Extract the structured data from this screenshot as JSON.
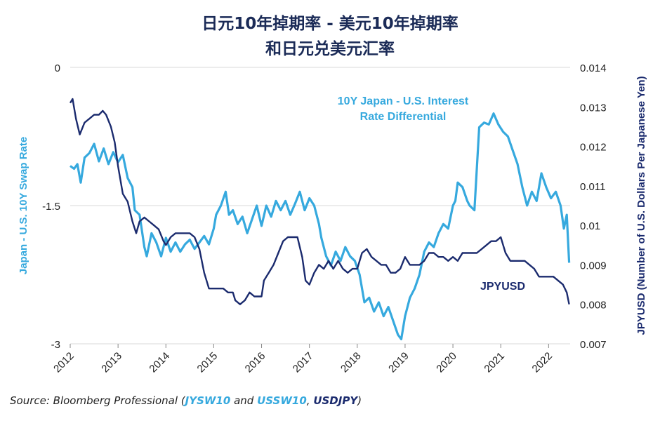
{
  "title_line1": "日元10年掉期率 - 美元10年掉期率",
  "title_line2": "和日元兑美元汇率",
  "source": {
    "prefix": "Source: Bloomberg Professional (",
    "jp_code": "JYSW10",
    "and": " and ",
    "us_code": "USSW10",
    "comma": ", ",
    "fx_code": "USDJPY",
    "suffix": ")"
  },
  "colors": {
    "differential": "#36a9de",
    "jpyusd": "#1b2b6e",
    "grid": "#d9d9d9",
    "axis_text": "#222222"
  },
  "chart_data": {
    "type": "line",
    "x_tick_labels": [
      "2012",
      "2013",
      "2014",
      "2015",
      "2016",
      "2017",
      "2018",
      "2019",
      "2020",
      "2021",
      "2022"
    ],
    "x_range": [
      2012.0,
      2022.45
    ],
    "y_left": {
      "label": "Japan - U.S. 10Y Swap Rate",
      "ticks": [
        "0",
        "-1.5",
        "-3"
      ],
      "tick_values": [
        0,
        -1.5,
        -3
      ],
      "range": [
        -3,
        0
      ]
    },
    "y_right": {
      "label": "JPYUSD (Number of U.S. Dollars Per Japanese Yen)",
      "ticks": [
        "0.014",
        "0.013",
        "0.012",
        "0.011",
        "0.01",
        "0.009",
        "0.008",
        "0.007"
      ],
      "tick_values": [
        0.014,
        0.013,
        0.012,
        0.011,
        0.01,
        0.009,
        0.008,
        0.007
      ],
      "range": [
        0.007,
        0.014
      ]
    },
    "grid": true,
    "series": [
      {
        "name": "10Y Japan - U.S. Interest Rate Differential",
        "label_lines": [
          "10Y Japan - U.S. Interest",
          "Rate Differential"
        ],
        "axis": "left",
        "points": [
          [
            2012.0,
            -1.07
          ],
          [
            2012.08,
            -1.1
          ],
          [
            2012.15,
            -1.05
          ],
          [
            2012.22,
            -1.25
          ],
          [
            2012.3,
            -0.98
          ],
          [
            2012.4,
            -0.93
          ],
          [
            2012.5,
            -0.83
          ],
          [
            2012.6,
            -1.02
          ],
          [
            2012.7,
            -0.88
          ],
          [
            2012.8,
            -1.05
          ],
          [
            2012.9,
            -0.92
          ],
          [
            2013.0,
            -1.03
          ],
          [
            2013.1,
            -0.95
          ],
          [
            2013.2,
            -1.2
          ],
          [
            2013.3,
            -1.3
          ],
          [
            2013.35,
            -1.55
          ],
          [
            2013.45,
            -1.6
          ],
          [
            2013.55,
            -1.95
          ],
          [
            2013.6,
            -2.05
          ],
          [
            2013.7,
            -1.8
          ],
          [
            2013.8,
            -1.9
          ],
          [
            2013.9,
            -2.05
          ],
          [
            2014.0,
            -1.85
          ],
          [
            2014.1,
            -2.0
          ],
          [
            2014.2,
            -1.9
          ],
          [
            2014.3,
            -2.0
          ],
          [
            2014.4,
            -1.92
          ],
          [
            2014.5,
            -1.87
          ],
          [
            2014.6,
            -1.97
          ],
          [
            2014.7,
            -1.9
          ],
          [
            2014.8,
            -1.83
          ],
          [
            2014.9,
            -1.92
          ],
          [
            2015.0,
            -1.75
          ],
          [
            2015.05,
            -1.6
          ],
          [
            2015.15,
            -1.5
          ],
          [
            2015.25,
            -1.35
          ],
          [
            2015.32,
            -1.6
          ],
          [
            2015.4,
            -1.55
          ],
          [
            2015.5,
            -1.7
          ],
          [
            2015.6,
            -1.62
          ],
          [
            2015.7,
            -1.8
          ],
          [
            2015.8,
            -1.65
          ],
          [
            2015.9,
            -1.5
          ],
          [
            2016.0,
            -1.72
          ],
          [
            2016.1,
            -1.5
          ],
          [
            2016.2,
            -1.62
          ],
          [
            2016.3,
            -1.45
          ],
          [
            2016.4,
            -1.55
          ],
          [
            2016.5,
            -1.45
          ],
          [
            2016.6,
            -1.6
          ],
          [
            2016.7,
            -1.48
          ],
          [
            2016.8,
            -1.35
          ],
          [
            2016.9,
            -1.55
          ],
          [
            2017.0,
            -1.42
          ],
          [
            2017.1,
            -1.5
          ],
          [
            2017.2,
            -1.7
          ],
          [
            2017.25,
            -1.85
          ],
          [
            2017.35,
            -2.05
          ],
          [
            2017.45,
            -2.15
          ],
          [
            2017.55,
            -2.0
          ],
          [
            2017.65,
            -2.1
          ],
          [
            2017.75,
            -1.95
          ],
          [
            2017.85,
            -2.05
          ],
          [
            2017.95,
            -2.1
          ],
          [
            2018.05,
            -2.25
          ],
          [
            2018.15,
            -2.55
          ],
          [
            2018.25,
            -2.5
          ],
          [
            2018.35,
            -2.65
          ],
          [
            2018.45,
            -2.55
          ],
          [
            2018.55,
            -2.7
          ],
          [
            2018.65,
            -2.6
          ],
          [
            2018.75,
            -2.75
          ],
          [
            2018.85,
            -2.9
          ],
          [
            2018.92,
            -2.95
          ],
          [
            2019.0,
            -2.7
          ],
          [
            2019.1,
            -2.5
          ],
          [
            2019.2,
            -2.4
          ],
          [
            2019.3,
            -2.25
          ],
          [
            2019.4,
            -2.0
          ],
          [
            2019.5,
            -1.9
          ],
          [
            2019.6,
            -1.95
          ],
          [
            2019.7,
            -1.8
          ],
          [
            2019.8,
            -1.7
          ],
          [
            2019.9,
            -1.75
          ],
          [
            2020.0,
            -1.5
          ],
          [
            2020.05,
            -1.45
          ],
          [
            2020.1,
            -1.25
          ],
          [
            2020.2,
            -1.3
          ],
          [
            2020.3,
            -1.45
          ],
          [
            2020.35,
            -1.5
          ],
          [
            2020.45,
            -1.55
          ],
          [
            2020.5,
            -1.1
          ],
          [
            2020.55,
            -0.65
          ],
          [
            2020.65,
            -0.6
          ],
          [
            2020.75,
            -0.62
          ],
          [
            2020.85,
            -0.5
          ],
          [
            2020.95,
            -0.62
          ],
          [
            2021.05,
            -0.7
          ],
          [
            2021.15,
            -0.75
          ],
          [
            2021.25,
            -0.9
          ],
          [
            2021.35,
            -1.05
          ],
          [
            2021.45,
            -1.3
          ],
          [
            2021.55,
            -1.5
          ],
          [
            2021.65,
            -1.35
          ],
          [
            2021.75,
            -1.45
          ],
          [
            2021.85,
            -1.15
          ],
          [
            2021.95,
            -1.3
          ],
          [
            2022.05,
            -1.42
          ],
          [
            2022.15,
            -1.35
          ],
          [
            2022.25,
            -1.5
          ],
          [
            2022.32,
            -1.75
          ],
          [
            2022.38,
            -1.6
          ],
          [
            2022.43,
            -2.12
          ]
        ]
      },
      {
        "name": "JPYUSD",
        "label_lines": [
          "JPYUSD"
        ],
        "axis": "right",
        "points": [
          [
            2012.0,
            0.0131
          ],
          [
            2012.05,
            0.0132
          ],
          [
            2012.12,
            0.0127
          ],
          [
            2012.2,
            0.0123
          ],
          [
            2012.3,
            0.0126
          ],
          [
            2012.4,
            0.0127
          ],
          [
            2012.5,
            0.0128
          ],
          [
            2012.6,
            0.0128
          ],
          [
            2012.68,
            0.0129
          ],
          [
            2012.75,
            0.0128
          ],
          [
            2012.85,
            0.0125
          ],
          [
            2012.93,
            0.0121
          ],
          [
            2013.0,
            0.0115
          ],
          [
            2013.1,
            0.0108
          ],
          [
            2013.2,
            0.0106
          ],
          [
            2013.3,
            0.0101
          ],
          [
            2013.38,
            0.0098
          ],
          [
            2013.45,
            0.0101
          ],
          [
            2013.55,
            0.0102
          ],
          [
            2013.65,
            0.0101
          ],
          [
            2013.75,
            0.01
          ],
          [
            2013.85,
            0.0099
          ],
          [
            2013.95,
            0.0096
          ],
          [
            2014.0,
            0.0095
          ],
          [
            2014.1,
            0.0097
          ],
          [
            2014.2,
            0.0098
          ],
          [
            2014.3,
            0.0098
          ],
          [
            2014.4,
            0.0098
          ],
          [
            2014.5,
            0.0098
          ],
          [
            2014.6,
            0.0097
          ],
          [
            2014.7,
            0.0094
          ],
          [
            2014.8,
            0.0088
          ],
          [
            2014.9,
            0.0084
          ],
          [
            2015.0,
            0.0084
          ],
          [
            2015.1,
            0.0084
          ],
          [
            2015.2,
            0.0084
          ],
          [
            2015.3,
            0.0083
          ],
          [
            2015.4,
            0.0083
          ],
          [
            2015.45,
            0.0081
          ],
          [
            2015.55,
            0.008
          ],
          [
            2015.65,
            0.0081
          ],
          [
            2015.75,
            0.0083
          ],
          [
            2015.85,
            0.0082
          ],
          [
            2015.95,
            0.0082
          ],
          [
            2016.0,
            0.0082
          ],
          [
            2016.05,
            0.0086
          ],
          [
            2016.15,
            0.0088
          ],
          [
            2016.25,
            0.009
          ],
          [
            2016.35,
            0.0093
          ],
          [
            2016.45,
            0.0096
          ],
          [
            2016.55,
            0.0097
          ],
          [
            2016.65,
            0.0097
          ],
          [
            2016.75,
            0.0097
          ],
          [
            2016.85,
            0.0092
          ],
          [
            2016.92,
            0.0086
          ],
          [
            2017.0,
            0.0085
          ],
          [
            2017.1,
            0.0088
          ],
          [
            2017.2,
            0.009
          ],
          [
            2017.3,
            0.0089
          ],
          [
            2017.4,
            0.0091
          ],
          [
            2017.5,
            0.0089
          ],
          [
            2017.6,
            0.0091
          ],
          [
            2017.7,
            0.0089
          ],
          [
            2017.8,
            0.0088
          ],
          [
            2017.9,
            0.0089
          ],
          [
            2018.0,
            0.0089
          ],
          [
            2018.1,
            0.0093
          ],
          [
            2018.2,
            0.0094
          ],
          [
            2018.3,
            0.0092
          ],
          [
            2018.4,
            0.0091
          ],
          [
            2018.5,
            0.009
          ],
          [
            2018.6,
            0.009
          ],
          [
            2018.7,
            0.0088
          ],
          [
            2018.8,
            0.0088
          ],
          [
            2018.9,
            0.0089
          ],
          [
            2019.0,
            0.0092
          ],
          [
            2019.1,
            0.009
          ],
          [
            2019.2,
            0.009
          ],
          [
            2019.3,
            0.009
          ],
          [
            2019.4,
            0.0091
          ],
          [
            2019.5,
            0.0093
          ],
          [
            2019.6,
            0.0093
          ],
          [
            2019.7,
            0.0092
          ],
          [
            2019.8,
            0.0092
          ],
          [
            2019.9,
            0.0091
          ],
          [
            2020.0,
            0.0092
          ],
          [
            2020.1,
            0.0091
          ],
          [
            2020.2,
            0.0093
          ],
          [
            2020.3,
            0.0093
          ],
          [
            2020.4,
            0.0093
          ],
          [
            2020.5,
            0.0093
          ],
          [
            2020.6,
            0.0094
          ],
          [
            2020.7,
            0.0095
          ],
          [
            2020.8,
            0.0096
          ],
          [
            2020.9,
            0.0096
          ],
          [
            2021.0,
            0.0097
          ],
          [
            2021.05,
            0.0095
          ],
          [
            2021.1,
            0.0093
          ],
          [
            2021.2,
            0.0091
          ],
          [
            2021.3,
            0.0091
          ],
          [
            2021.4,
            0.0091
          ],
          [
            2021.5,
            0.0091
          ],
          [
            2021.6,
            0.009
          ],
          [
            2021.7,
            0.0089
          ],
          [
            2021.8,
            0.0087
          ],
          [
            2021.9,
            0.0087
          ],
          [
            2022.0,
            0.0087
          ],
          [
            2022.1,
            0.0087
          ],
          [
            2022.2,
            0.0086
          ],
          [
            2022.3,
            0.0085
          ],
          [
            2022.38,
            0.0083
          ],
          [
            2022.43,
            0.008
          ]
        ]
      }
    ]
  }
}
